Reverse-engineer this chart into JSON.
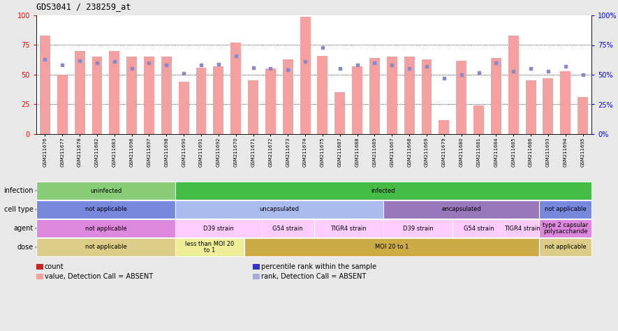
{
  "title": "GDS3041 / 238259_at",
  "samples": [
    "GSM211676",
    "GSM211677",
    "GSM211678",
    "GSM211682",
    "GSM211683",
    "GSM211696",
    "GSM211697",
    "GSM211698",
    "GSM211690",
    "GSM211691",
    "GSM211692",
    "GSM211670",
    "GSM211671",
    "GSM211672",
    "GSM211673",
    "GSM211674",
    "GSM211675",
    "GSM211687",
    "GSM211688",
    "GSM211689",
    "GSM211667",
    "GSM211668",
    "GSM211669",
    "GSM211679",
    "GSM211680",
    "GSM211681",
    "GSM211684",
    "GSM211685",
    "GSM211686",
    "GSM211693",
    "GSM211694",
    "GSM211695"
  ],
  "bar_values": [
    83,
    50,
    70,
    65,
    70,
    65,
    65,
    65,
    44,
    56,
    57,
    77,
    45,
    55,
    63,
    99,
    66,
    35,
    57,
    64,
    65,
    65,
    63,
    12,
    62,
    24,
    64,
    83,
    45,
    47,
    53,
    31
  ],
  "dot_values": [
    63,
    58,
    62,
    60,
    61,
    55,
    60,
    58,
    51,
    58,
    59,
    66,
    56,
    55,
    54,
    61,
    73,
    55,
    58,
    60,
    58,
    55,
    57,
    47,
    50,
    52,
    60,
    53,
    55,
    53,
    57,
    50
  ],
  "bar_color": "#f4a0a0",
  "dot_color": "#8888cc",
  "infection_labels": [
    {
      "text": "uninfected",
      "start": 0,
      "end": 8,
      "color": "#88cc77"
    },
    {
      "text": "infected",
      "start": 8,
      "end": 32,
      "color": "#44bb44"
    }
  ],
  "celltype_labels": [
    {
      "text": "not applicable",
      "start": 0,
      "end": 8,
      "color": "#7788dd"
    },
    {
      "text": "uncapsulated",
      "start": 8,
      "end": 20,
      "color": "#aabbee"
    },
    {
      "text": "encapsulated",
      "start": 20,
      "end": 29,
      "color": "#9977bb"
    },
    {
      "text": "not applicable",
      "start": 29,
      "end": 32,
      "color": "#7788dd"
    }
  ],
  "agent_labels": [
    {
      "text": "not applicable",
      "start": 0,
      "end": 8,
      "color": "#dd88dd"
    },
    {
      "text": "D39 strain",
      "start": 8,
      "end": 13,
      "color": "#ffccff"
    },
    {
      "text": "G54 strain",
      "start": 13,
      "end": 16,
      "color": "#ffccff"
    },
    {
      "text": "TIGR4 strain",
      "start": 16,
      "end": 20,
      "color": "#ffccff"
    },
    {
      "text": "D39 strain",
      "start": 20,
      "end": 24,
      "color": "#ffccff"
    },
    {
      "text": "G54 strain",
      "start": 24,
      "end": 27,
      "color": "#ffccff"
    },
    {
      "text": "TIGR4 strain",
      "start": 27,
      "end": 29,
      "color": "#ffccff"
    },
    {
      "text": "type 2 capsular\npolysaccharide",
      "start": 29,
      "end": 32,
      "color": "#dd88dd"
    }
  ],
  "dose_labels": [
    {
      "text": "not applicable",
      "start": 0,
      "end": 8,
      "color": "#ddcc88"
    },
    {
      "text": "less than MOI 20\nto 1",
      "start": 8,
      "end": 12,
      "color": "#eeee99"
    },
    {
      "text": "MOI 20 to 1",
      "start": 12,
      "end": 29,
      "color": "#ccaa44"
    },
    {
      "text": "not applicable",
      "start": 29,
      "end": 32,
      "color": "#ddcc88"
    }
  ],
  "row_names": [
    "infection",
    "cell type",
    "agent",
    "dose"
  ],
  "legend_items": [
    {
      "color": "#cc2222",
      "label": "count"
    },
    {
      "color": "#3333cc",
      "label": "percentile rank within the sample"
    },
    {
      "color": "#f4a0a0",
      "label": "value, Detection Call = ABSENT"
    },
    {
      "color": "#aaaadd",
      "label": "rank, Detection Call = ABSENT"
    }
  ],
  "yticks": [
    0,
    25,
    50,
    75,
    100
  ],
  "bg_color": "#e8e8e8"
}
